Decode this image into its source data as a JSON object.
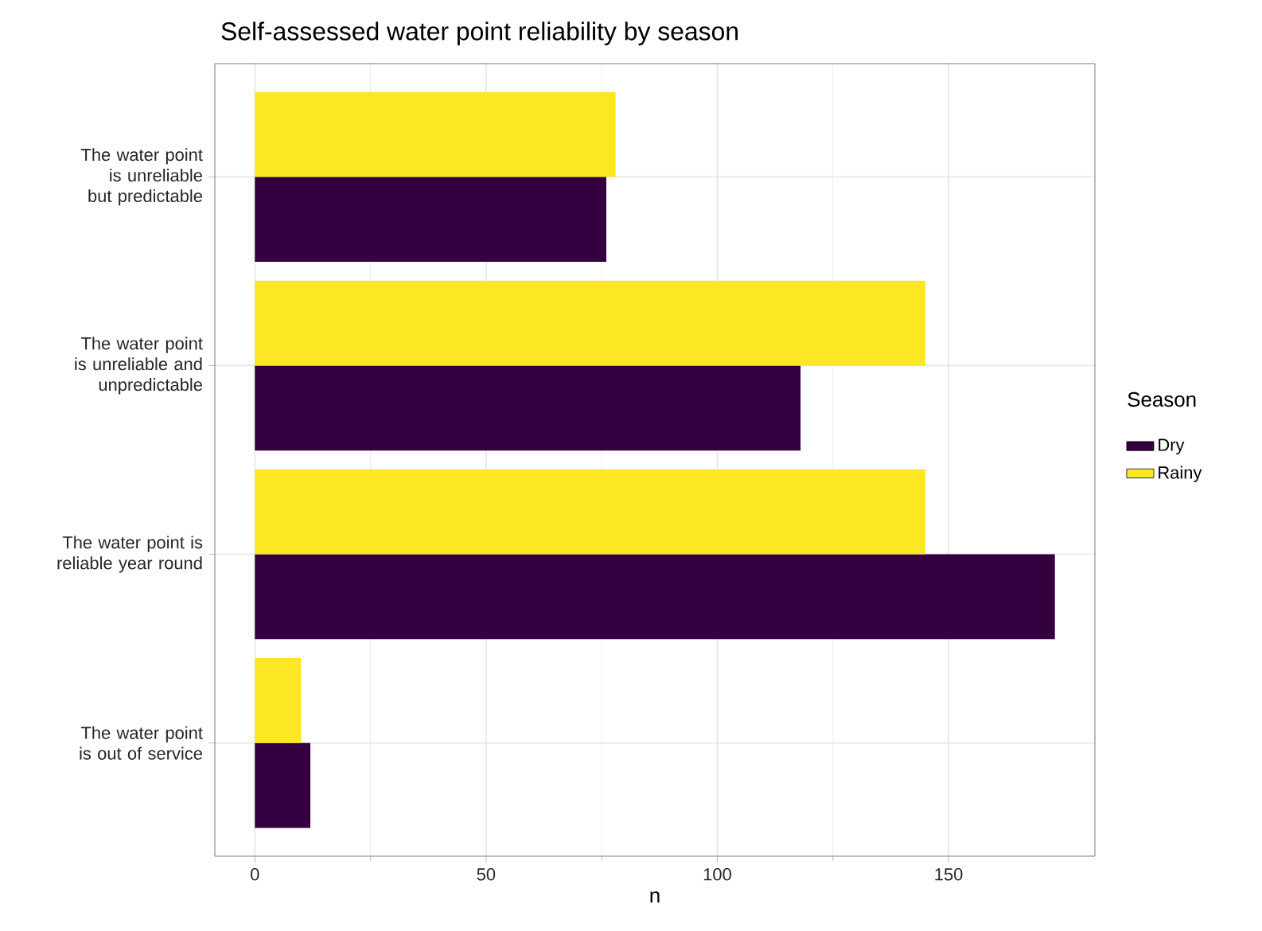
{
  "chart_data": {
    "type": "bar",
    "orientation": "horizontal",
    "title": "Self-assessed water point reliability by season",
    "xlabel": "n",
    "legend_title": "Season",
    "categories": [
      "The water point is unreliable but predictable",
      "The water point is unreliable and unpredictable",
      "The water point is reliable year round",
      "The water point is out of service"
    ],
    "series": [
      {
        "name": "Dry",
        "color": "#35003f",
        "values": [
          76,
          118,
          173,
          12
        ]
      },
      {
        "name": "Rainy",
        "color": "#fde725",
        "values": [
          78,
          145,
          145,
          10
        ]
      }
    ],
    "xlim": [
      -8.65,
      181.65
    ],
    "xticks": [
      0,
      50,
      100,
      150
    ],
    "grid": true,
    "legend": "right"
  }
}
